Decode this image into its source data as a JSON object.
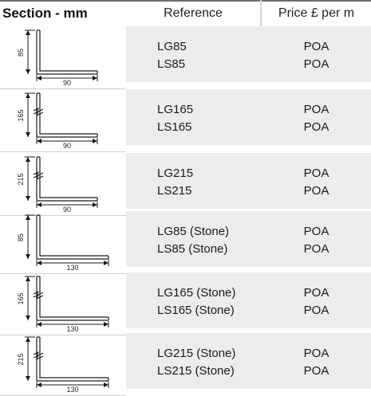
{
  "header": {
    "section": "Section - mm",
    "reference": "Reference",
    "price": "Price £ per m"
  },
  "rows": [
    {
      "height_label": "85",
      "width_label": "90",
      "ref1": "LG85",
      "ref2": "LS85",
      "price1": "POA",
      "price2": "POA",
      "break_mark": false
    },
    {
      "height_label": "165",
      "width_label": "90",
      "ref1": "LG165",
      "ref2": "LS165",
      "price1": "POA",
      "price2": "POA",
      "break_mark": true
    },
    {
      "height_label": "215",
      "width_label": "90",
      "ref1": "LG215",
      "ref2": "LS215",
      "price1": "POA",
      "price2": "POA",
      "break_mark": true
    },
    {
      "height_label": "85",
      "width_label": "130",
      "ref1": "LG85 (Stone)",
      "ref2": "LS85 (Stone)",
      "price1": "POA",
      "price2": "POA",
      "break_mark": false
    },
    {
      "height_label": "165",
      "width_label": "130",
      "ref1": "LG165 (Stone)",
      "ref2": "LS165 (Stone)",
      "price1": "POA",
      "price2": "POA",
      "break_mark": true
    },
    {
      "height_label": "215",
      "width_label": "130",
      "ref1": "LG215 (Stone)",
      "ref2": "LS215 (Stone)",
      "price1": "POA",
      "price2": "POA",
      "break_mark": true
    }
  ]
}
